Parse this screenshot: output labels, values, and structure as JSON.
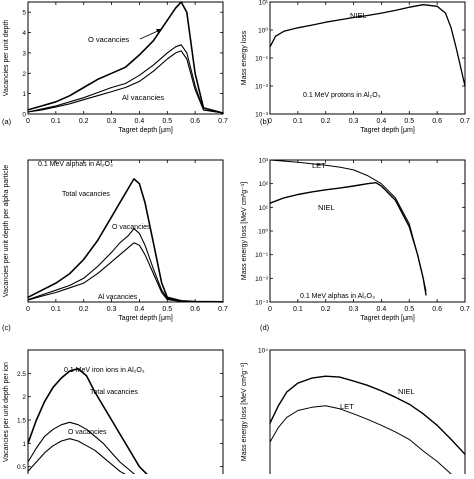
{
  "chart_data": [
    {
      "id": "a",
      "type": "line",
      "panel_label": "(a)",
      "xlabel": "Tagret depth [μm]",
      "ylabel": "Vacancies per unit depth",
      "xlim": [
        0,
        0.7
      ],
      "ylim": [
        0,
        5.5
      ],
      "xticks": [
        0,
        0.1,
        0.2,
        0.3,
        0.4,
        0.5,
        0.6,
        0.7
      ],
      "yticks": [
        0,
        1,
        2,
        3,
        4,
        5
      ],
      "series": [
        {
          "name": "Total vacancies",
          "width": 1.6,
          "x": [
            0,
            0.05,
            0.1,
            0.15,
            0.2,
            0.25,
            0.3,
            0.35,
            0.4,
            0.45,
            0.5,
            0.53,
            0.55,
            0.57,
            0.6,
            0.63,
            0.7
          ],
          "y": [
            0.2,
            0.4,
            0.6,
            0.9,
            1.3,
            1.7,
            2.0,
            2.3,
            2.9,
            3.6,
            4.6,
            5.2,
            5.5,
            5.0,
            2.0,
            0.3,
            0.05
          ]
        },
        {
          "name": "O vacancies",
          "width": 1.1,
          "x": [
            0,
            0.05,
            0.1,
            0.15,
            0.2,
            0.25,
            0.3,
            0.35,
            0.4,
            0.45,
            0.5,
            0.53,
            0.55,
            0.57,
            0.6,
            0.63,
            0.7
          ],
          "y": [
            0.1,
            0.25,
            0.4,
            0.6,
            0.8,
            1.05,
            1.3,
            1.5,
            1.9,
            2.4,
            3.0,
            3.3,
            3.4,
            3.0,
            1.4,
            0.2,
            0.05
          ]
        },
        {
          "name": "Al vacancies",
          "width": 1.1,
          "x": [
            0,
            0.05,
            0.1,
            0.15,
            0.2,
            0.25,
            0.3,
            0.35,
            0.4,
            0.45,
            0.5,
            0.53,
            0.55,
            0.57,
            0.6,
            0.63,
            0.7
          ],
          "y": [
            0.1,
            0.2,
            0.35,
            0.5,
            0.7,
            0.9,
            1.1,
            1.3,
            1.6,
            2.1,
            2.7,
            3.0,
            3.1,
            2.7,
            1.2,
            0.2,
            0.05
          ]
        }
      ],
      "annotations": [
        "O vacancies",
        "Al vacancies"
      ]
    },
    {
      "id": "b",
      "type": "line",
      "panel_label": "(b)",
      "xlabel": "Tagret depth [μm]",
      "ylabel": "Mass energy loss",
      "xlim": [
        0,
        0.7
      ],
      "ylim": [
        0.001,
        10
      ],
      "yscale": "log",
      "xticks": [
        0,
        0.1,
        0.2,
        0.3,
        0.4,
        0.5,
        0.6,
        0.7
      ],
      "yticks": [
        {
          "v": 0.001,
          "label": "10⁻³"
        },
        {
          "v": 0.01,
          "label": "10⁻²"
        },
        {
          "v": 0.1,
          "label": "10⁻¹"
        },
        {
          "v": 1,
          "label": "10⁰"
        },
        {
          "v": 10,
          "label": "10¹"
        }
      ],
      "series": [
        {
          "name": "NIEL",
          "width": 1.3,
          "x": [
            0,
            0.02,
            0.05,
            0.1,
            0.15,
            0.2,
            0.25,
            0.3,
            0.35,
            0.4,
            0.45,
            0.5,
            0.55,
            0.6,
            0.63,
            0.65,
            0.67,
            0.7
          ],
          "y": [
            0.25,
            0.6,
            0.9,
            1.2,
            1.5,
            1.9,
            2.3,
            2.8,
            3.3,
            4.0,
            5.0,
            6.5,
            8.0,
            7.0,
            4.0,
            1.2,
            0.2,
            0.01
          ]
        }
      ],
      "annotations": [
        "NIEL",
        "0.1 MeV protons in Al₂O₃"
      ]
    },
    {
      "id": "c",
      "type": "line",
      "panel_label": "(c)",
      "xlabel": "Tagret depth [μm]",
      "ylabel": "Vacancies per unit depth per alpha particle",
      "xlim": [
        0,
        0.7
      ],
      "ylim": [
        0,
        60
      ],
      "xticks": [
        0,
        0.1,
        0.2,
        0.3,
        0.4,
        0.5,
        0.6,
        0.7
      ],
      "yticks": [],
      "series": [
        {
          "name": "Total vacancies",
          "width": 1.6,
          "x": [
            0,
            0.05,
            0.1,
            0.15,
            0.2,
            0.25,
            0.3,
            0.33,
            0.36,
            0.38,
            0.4,
            0.42,
            0.45,
            0.48,
            0.5,
            0.55,
            0.6,
            0.7
          ],
          "y": [
            2,
            5,
            8,
            12,
            18,
            26,
            36,
            42,
            48,
            52,
            50,
            42,
            25,
            8,
            2,
            0.5,
            0.2,
            0.1
          ]
        },
        {
          "name": "O vacancies",
          "width": 1.1,
          "x": [
            0,
            0.05,
            0.1,
            0.15,
            0.2,
            0.25,
            0.3,
            0.33,
            0.36,
            0.38,
            0.4,
            0.42,
            0.45,
            0.48,
            0.5,
            0.55,
            0.6,
            0.7
          ],
          "y": [
            1,
            3,
            5,
            7,
            10,
            15,
            21,
            25,
            28,
            31,
            29,
            24,
            14,
            5,
            1.5,
            0.3,
            0.1,
            0.1
          ]
        },
        {
          "name": "Al vacancies",
          "width": 1.1,
          "x": [
            0,
            0.05,
            0.1,
            0.15,
            0.2,
            0.25,
            0.3,
            0.33,
            0.36,
            0.38,
            0.4,
            0.42,
            0.45,
            0.48,
            0.5,
            0.55,
            0.6,
            0.7
          ],
          "y": [
            0.8,
            2.5,
            4,
            6,
            8,
            12,
            17,
            20,
            23,
            25,
            24,
            20,
            12,
            4,
            1,
            0.3,
            0.1,
            0.1
          ]
        }
      ],
      "annotations": [
        "0.1 MeV alphas in Al₂O₃",
        "Total vacancies",
        "O vacancies",
        "Al vacancies"
      ]
    },
    {
      "id": "d",
      "type": "line",
      "panel_label": "(d)",
      "xlabel": "Tagret depth [μm]",
      "ylabel": "Mass energy loss [MeV cm²g⁻¹]",
      "xlim": [
        0,
        0.7
      ],
      "ylim": [
        0.001,
        1000
      ],
      "yscale": "log",
      "xticks": [
        0,
        0.1,
        0.2,
        0.3,
        0.4,
        0.5,
        0.6,
        0.7
      ],
      "yticks": [
        {
          "v": 0.001,
          "label": "10⁻³"
        },
        {
          "v": 0.01,
          "label": "10⁻²"
        },
        {
          "v": 0.1,
          "label": "10⁻¹"
        },
        {
          "v": 1,
          "label": "10⁰"
        },
        {
          "v": 10,
          "label": "10¹"
        },
        {
          "v": 100,
          "label": "10²"
        },
        {
          "v": 1000,
          "label": "10³"
        }
      ],
      "series": [
        {
          "name": "LET",
          "width": 1.0,
          "x": [
            0,
            0.05,
            0.1,
            0.15,
            0.2,
            0.25,
            0.3,
            0.35,
            0.4,
            0.45,
            0.5,
            0.53,
            0.55,
            0.56
          ],
          "y": [
            1000,
            900,
            800,
            700,
            600,
            500,
            380,
            220,
            100,
            25,
            2,
            0.1,
            0.01,
            0.003
          ]
        },
        {
          "name": "NIEL",
          "width": 1.4,
          "x": [
            0,
            0.05,
            0.1,
            0.15,
            0.2,
            0.25,
            0.3,
            0.35,
            0.38,
            0.4,
            0.45,
            0.5,
            0.53,
            0.55,
            0.56
          ],
          "y": [
            15,
            25,
            35,
            45,
            55,
            65,
            80,
            100,
            110,
            80,
            20,
            1.5,
            0.1,
            0.01,
            0.002
          ]
        }
      ],
      "annotations": [
        "LET",
        "NIEL",
        "0.1 MeV alphas in Al₂O₃"
      ]
    },
    {
      "id": "e",
      "type": "line",
      "xlabel": "",
      "ylabel": "Vacancies per unit depth per ion",
      "xlim": [
        0,
        0.7
      ],
      "ylim": [
        0,
        3.0
      ],
      "xticks": [],
      "yticks": [
        0.5,
        1,
        1.5,
        2,
        2.5
      ],
      "series": [
        {
          "name": "Total vacancies",
          "width": 1.6,
          "x": [
            0,
            0.03,
            0.06,
            0.09,
            0.12,
            0.15,
            0.18,
            0.21,
            0.24,
            0.27,
            0.3,
            0.33,
            0.36,
            0.4,
            0.45
          ],
          "y": [
            1.0,
            1.5,
            1.9,
            2.2,
            2.4,
            2.55,
            2.6,
            2.45,
            2.1,
            1.8,
            1.5,
            1.2,
            0.9,
            0.5,
            0.2
          ]
        },
        {
          "name": "O vacancies",
          "width": 1.1,
          "x": [
            0,
            0.03,
            0.06,
            0.09,
            0.12,
            0.15,
            0.18,
            0.21,
            0.24,
            0.27,
            0.3,
            0.33,
            0.36,
            0.4,
            0.45
          ],
          "y": [
            0.6,
            0.9,
            1.15,
            1.3,
            1.4,
            1.45,
            1.4,
            1.3,
            1.15,
            1.0,
            0.8,
            0.6,
            0.45,
            0.25,
            0.1
          ]
        },
        {
          "name": "Al vacancies",
          "width": 1.1,
          "x": [
            0,
            0.03,
            0.06,
            0.09,
            0.12,
            0.15,
            0.18,
            0.21,
            0.24,
            0.27,
            0.3,
            0.33,
            0.36,
            0.4,
            0.45
          ],
          "y": [
            0.4,
            0.6,
            0.8,
            0.95,
            1.05,
            1.1,
            1.05,
            0.95,
            0.85,
            0.7,
            0.55,
            0.4,
            0.3,
            0.15,
            0.05
          ]
        }
      ],
      "annotations": [
        "0.1 MeV iron ions in Al₂O₃",
        "Total vacancies",
        "O vacancies"
      ]
    },
    {
      "id": "f",
      "type": "line",
      "xlabel": "",
      "ylabel": "Mass energy loss [MeV cm²g⁻¹]",
      "xlim": [
        0,
        0.7
      ],
      "ylim": [
        1000,
        10000
      ],
      "yscale": "log",
      "xticks": [],
      "yticks": [
        {
          "v": 10000,
          "label": "10⁴"
        }
      ],
      "series": [
        {
          "name": "NIEL",
          "width": 1.4,
          "x": [
            0,
            0.03,
            0.06,
            0.1,
            0.15,
            0.2,
            0.25,
            0.3,
            0.35,
            0.4,
            0.45,
            0.5,
            0.55,
            0.6,
            0.65,
            0.7
          ],
          "y": [
            3000,
            4000,
            5000,
            5800,
            6300,
            6500,
            6400,
            6000,
            5600,
            5100,
            4600,
            4100,
            3500,
            2900,
            2300,
            1800
          ]
        },
        {
          "name": "LET",
          "width": 1.0,
          "x": [
            0,
            0.03,
            0.06,
            0.1,
            0.15,
            0.2,
            0.25,
            0.3,
            0.35,
            0.4,
            0.45,
            0.5,
            0.55,
            0.6,
            0.65,
            0.7
          ],
          "y": [
            2200,
            2800,
            3300,
            3700,
            3900,
            4000,
            3800,
            3500,
            3200,
            2900,
            2600,
            2300,
            1900,
            1600,
            1300,
            1050
          ]
        }
      ],
      "annotations": [
        "NIEL",
        "LET"
      ]
    }
  ],
  "labels": {
    "a_o_vac": "O vacancies",
    "a_al_vac": "Al vacancies",
    "b_niel": "NIEL",
    "b_info": "0.1 MeV protons in Al₂O₃",
    "c_info": "0.1 MeV alphas in Al₂O₃",
    "c_total": "Total vacancies",
    "c_o_vac": "O vacancies",
    "c_al_vac": "Al vacancies",
    "d_let": "LET",
    "d_niel": "NIEL",
    "d_info": "0.1 MeV alphas in Al₂O₃",
    "e_info": "0.1 MeV iron ions in Al₂O₃",
    "e_total": "Total vacancies",
    "e_o_vac": "O vacancies",
    "f_niel": "NIEL",
    "f_let": "LET"
  }
}
